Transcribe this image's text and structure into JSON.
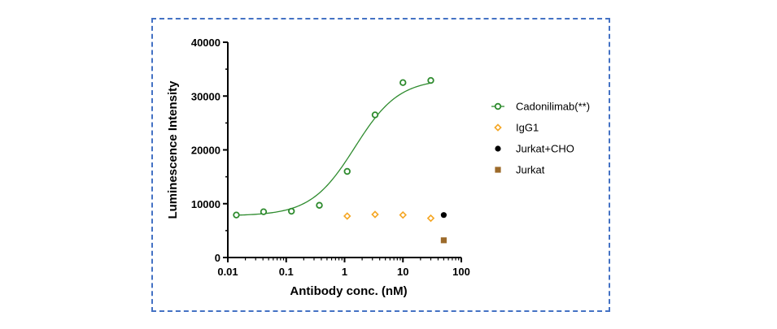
{
  "chart_data": {
    "type": "scatter",
    "xlabel": "Antibody conc. (nM)",
    "ylabel": "Luminescence Intensity",
    "xscale": "log",
    "xlim": [
      0.01,
      100
    ],
    "ylim": [
      0,
      40000
    ],
    "xticks": [
      "0.01",
      "0.1",
      "1",
      "10",
      "100"
    ],
    "yticks": [
      "0",
      "10000",
      "20000",
      "30000",
      "40000"
    ],
    "grid": false,
    "legend_position": "right",
    "series": [
      {
        "name": "Cadonilimab(**)",
        "marker": "open-circle",
        "color": "#2e8b2e",
        "fit_curve": true,
        "x": [
          0.014,
          0.041,
          0.123,
          0.37,
          1.11,
          3.33,
          10,
          30
        ],
        "y": [
          7900,
          8500,
          8600,
          9700,
          16000,
          26500,
          32500,
          32900
        ]
      },
      {
        "name": "IgG1",
        "marker": "open-diamond",
        "color": "#f5a623",
        "x": [
          1.11,
          3.33,
          10,
          30
        ],
        "y": [
          7700,
          8000,
          7900,
          7300
        ]
      },
      {
        "name": "Jurkat+CHO",
        "marker": "filled-circle",
        "color": "#000000",
        "x": [
          50
        ],
        "y": [
          7900
        ]
      },
      {
        "name": "Jurkat",
        "marker": "filled-square",
        "color": "#9c6a2a",
        "x": [
          50
        ],
        "y": [
          3200
        ]
      }
    ]
  }
}
